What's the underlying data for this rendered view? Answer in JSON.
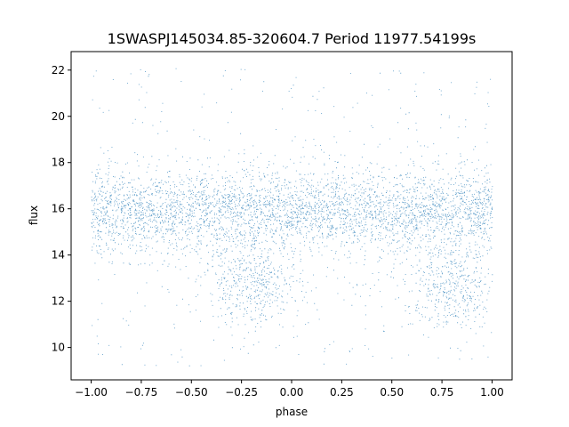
{
  "chart_data": {
    "type": "scatter",
    "title": "1SWASPJ145034.85-320604.7 Period 11977.54199s",
    "xlabel": "phase",
    "ylabel": "flux",
    "xlim": [
      -1.1,
      1.1
    ],
    "ylim": [
      8.6,
      22.8
    ],
    "x_ticks": [
      -1.0,
      -0.75,
      -0.5,
      -0.25,
      0.0,
      0.25,
      0.5,
      0.75,
      1.0
    ],
    "x_tick_labels": [
      "−1.00",
      "−0.75",
      "−0.50",
      "−0.25",
      "0.00",
      "0.25",
      "0.50",
      "0.75",
      "1.00"
    ],
    "y_ticks": [
      10,
      12,
      14,
      16,
      18,
      20,
      22
    ],
    "y_tick_labels": [
      "10",
      "12",
      "14",
      "16",
      "18",
      "20",
      "22"
    ],
    "grid": false,
    "marker_color": "#1f77b4",
    "distribution": {
      "phase_range": [
        -1.0,
        1.0
      ],
      "band_center_flux": 15.9,
      "band_spread_flux": 0.85,
      "dip_center_phases": [
        -0.2,
        0.8
      ],
      "dip_center_flux": 12.1,
      "dip_phase_halfwidth": 0.12,
      "outlier_flux_range": [
        9.2,
        22.1
      ]
    }
  }
}
